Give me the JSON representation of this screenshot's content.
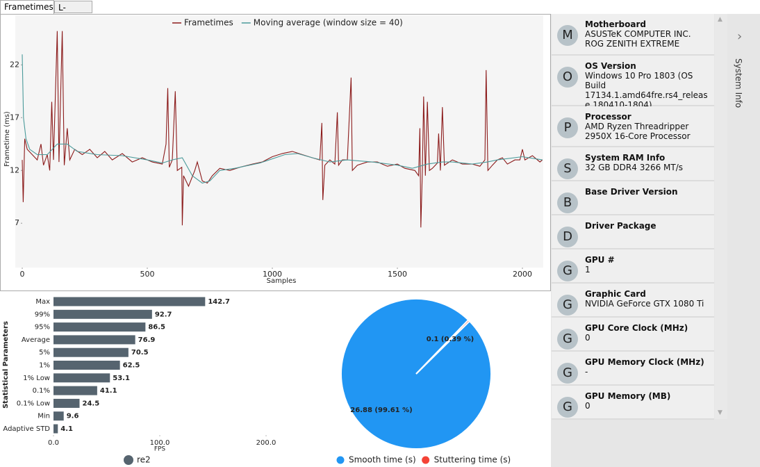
{
  "tabs": [
    "Frametimes",
    "L-shape"
  ],
  "chart_data": [
    {
      "type": "line",
      "xlabel": "Samples",
      "ylabel": "Frametime (ms)",
      "xlim": [
        0,
        2080
      ],
      "ylim": [
        2.8,
        26.5
      ],
      "xticks": [
        0,
        500,
        1000,
        1500,
        2000
      ],
      "yticks": [
        7,
        12,
        17,
        22
      ],
      "series": [
        {
          "name": "Frametimes",
          "color": "#8b1a1a",
          "x": [
            0,
            4,
            10,
            20,
            40,
            60,
            75,
            85,
            100,
            110,
            118,
            125,
            140,
            147,
            160,
            168,
            180,
            190,
            210,
            240,
            270,
            300,
            330,
            360,
            400,
            440,
            480,
            520,
            560,
            575,
            582,
            588,
            600,
            612,
            620,
            638,
            640,
            645,
            665,
            690,
            700,
            720,
            740,
            760,
            790,
            830,
            870,
            920,
            960,
            1000,
            1040,
            1080,
            1120,
            1160,
            1190,
            1198,
            1202,
            1210,
            1230,
            1250,
            1260,
            1265,
            1280,
            1300,
            1315,
            1320,
            1340,
            1380,
            1420,
            1460,
            1500,
            1530,
            1570,
            1585,
            1590,
            1594,
            1600,
            1605,
            1612,
            1620,
            1628,
            1640,
            1660,
            1665,
            1672,
            1680,
            1688,
            1720,
            1760,
            1800,
            1830,
            1850,
            1855,
            1862,
            1880,
            1900,
            1920,
            1940,
            1970,
            1990,
            2000,
            2010,
            2040,
            2070,
            2080
          ],
          "values": [
            13,
            9,
            15,
            14,
            13.5,
            13,
            14.5,
            12.5,
            13.5,
            12,
            18.5,
            13,
            25.2,
            12.8,
            25.2,
            12.5,
            16,
            13,
            14,
            13.5,
            14,
            13.2,
            13.8,
            13,
            13.6,
            12.8,
            13.2,
            12.8,
            12.6,
            14.5,
            19.8,
            12.3,
            13,
            19.5,
            12,
            12.3,
            6.8,
            11.5,
            10.5,
            12,
            12.8,
            11,
            10.8,
            11.5,
            12.2,
            12,
            12.3,
            12.6,
            12.8,
            13.3,
            13.6,
            13.8,
            13.5,
            13.2,
            13,
            16.5,
            9.2,
            12.5,
            13,
            12.6,
            17.5,
            12.5,
            13,
            13,
            20.8,
            12,
            12.5,
            12.8,
            12.8,
            12.4,
            12.6,
            12.2,
            12,
            11.5,
            16,
            6.6,
            12,
            19,
            11.5,
            18.5,
            12,
            12.2,
            12.7,
            15.5,
            12,
            18,
            12.5,
            13,
            12.6,
            12.6,
            12.4,
            13,
            21.5,
            12,
            12.5,
            13,
            13.2,
            12.6,
            13,
            13,
            14,
            13,
            13.4,
            12.8,
            13
          ]
        },
        {
          "name": "Moving average (window size = 40)",
          "color": "#4a9a9a",
          "x": [
            0,
            5,
            15,
            30,
            60,
            100,
            140,
            180,
            220,
            300,
            400,
            500,
            560,
            600,
            640,
            680,
            720,
            750,
            790,
            850,
            950,
            1050,
            1100,
            1160,
            1230,
            1300,
            1400,
            1500,
            1560,
            1620,
            1680,
            1720,
            1800,
            1860,
            1900,
            2000,
            2080
          ],
          "values": [
            23,
            17,
            15,
            14,
            13.5,
            13.5,
            14.5,
            14.5,
            13.8,
            13.5,
            13.4,
            13,
            12.7,
            13,
            13.2,
            11.5,
            10.8,
            11,
            12,
            12.2,
            12.7,
            13.5,
            13.6,
            13.2,
            12.8,
            13,
            12.8,
            12.5,
            12.2,
            12.6,
            12.8,
            12.8,
            12.6,
            12.8,
            13,
            13.3,
            13
          ]
        }
      ]
    },
    {
      "type": "hbar",
      "xlabel": "FPS",
      "ylabel": "Statistical Parameters",
      "categories": [
        "Max",
        "99%",
        "95%",
        "Average",
        "5%",
        "1%",
        "1% Low",
        "0.1%",
        "0.1% Low",
        "Min",
        "Adaptive STD"
      ],
      "series": [
        {
          "name": "re2",
          "color": "#56646f",
          "values": [
            142.7,
            92.7,
            86.5,
            76.9,
            70.5,
            62.5,
            53.1,
            41.1,
            24.5,
            9.6,
            4.1
          ]
        }
      ],
      "xlim": [
        0,
        200
      ],
      "xticks": [
        {
          "value": 0,
          "label": "0.0"
        },
        {
          "value": 100,
          "label": "100.0"
        },
        {
          "value": 200,
          "label": "200.0"
        }
      ]
    },
    {
      "type": "pie",
      "categories": [
        "Smooth time (s)",
        "Stuttering time (s)"
      ],
      "values": [
        26.88,
        0.1
      ],
      "value_labels": [
        "26.88 (99.61 %)",
        "0.1 (0.39 %)"
      ],
      "colors": [
        "#2196f3",
        "#f44336"
      ]
    }
  ],
  "sidebar": {
    "title": "System Info",
    "items": [
      {
        "letter": "M",
        "title": "Motherboard",
        "value": "ASUSTeK COMPUTER INC. ROG ZENITH EXTREME"
      },
      {
        "letter": "O",
        "title": "OS Version",
        "value": "Windows 10 Pro 1803 (OS Build 17134.1.amd64fre.rs4_release.180410-1804)"
      },
      {
        "letter": "P",
        "title": "Processor",
        "value": "AMD Ryzen Threadripper 2950X 16-Core Processor"
      },
      {
        "letter": "S",
        "title": "System RAM Info",
        "value": "32 GB DDR4 3266 MT/s"
      },
      {
        "letter": "B",
        "title": "Base Driver Version"
      },
      {
        "letter": "D",
        "title": "Driver Package"
      },
      {
        "letter": "G",
        "title": "GPU #",
        "value": "1"
      },
      {
        "letter": "G",
        "title": "Graphic Card",
        "value": "NVIDIA GeForce GTX 1080 Ti"
      },
      {
        "letter": "G",
        "title": "GPU Core Clock (MHz)",
        "value": "0"
      },
      {
        "letter": "G",
        "title": "GPU Memory Clock (MHz)",
        "value": "-"
      },
      {
        "letter": "G",
        "title": "GPU Memory (MB)",
        "value": "0"
      }
    ]
  }
}
